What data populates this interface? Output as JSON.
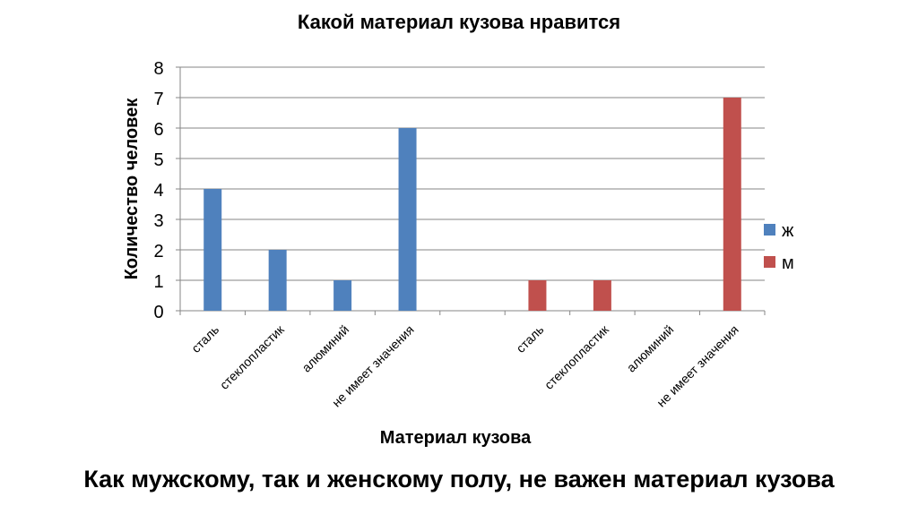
{
  "chart_data": {
    "type": "bar",
    "title": "Какой материал кузова нравится",
    "xlabel": "Материал кузова",
    "ylabel": "Количество человек",
    "ylim": [
      0,
      8
    ],
    "yticks": [
      0,
      1,
      2,
      3,
      4,
      5,
      6,
      7,
      8
    ],
    "grid": true,
    "legend_position": "right",
    "categories": [
      "сталь",
      "стеклопластик",
      "алюминий",
      "не имеет значения",
      "",
      "сталь",
      "стеклопластик",
      "алюминий",
      "не имеет значения"
    ],
    "series": [
      {
        "name": "ж",
        "color": "#4F81BD",
        "values": [
          4,
          2,
          1,
          6,
          0,
          0,
          0,
          0,
          0
        ]
      },
      {
        "name": "м",
        "color": "#C0504D",
        "values": [
          0,
          0,
          0,
          0,
          0,
          1,
          1,
          0,
          7
        ]
      }
    ]
  },
  "footer": {
    "conclusion": "Как мужскому, так и женскому полу, не важен материал кузова"
  }
}
